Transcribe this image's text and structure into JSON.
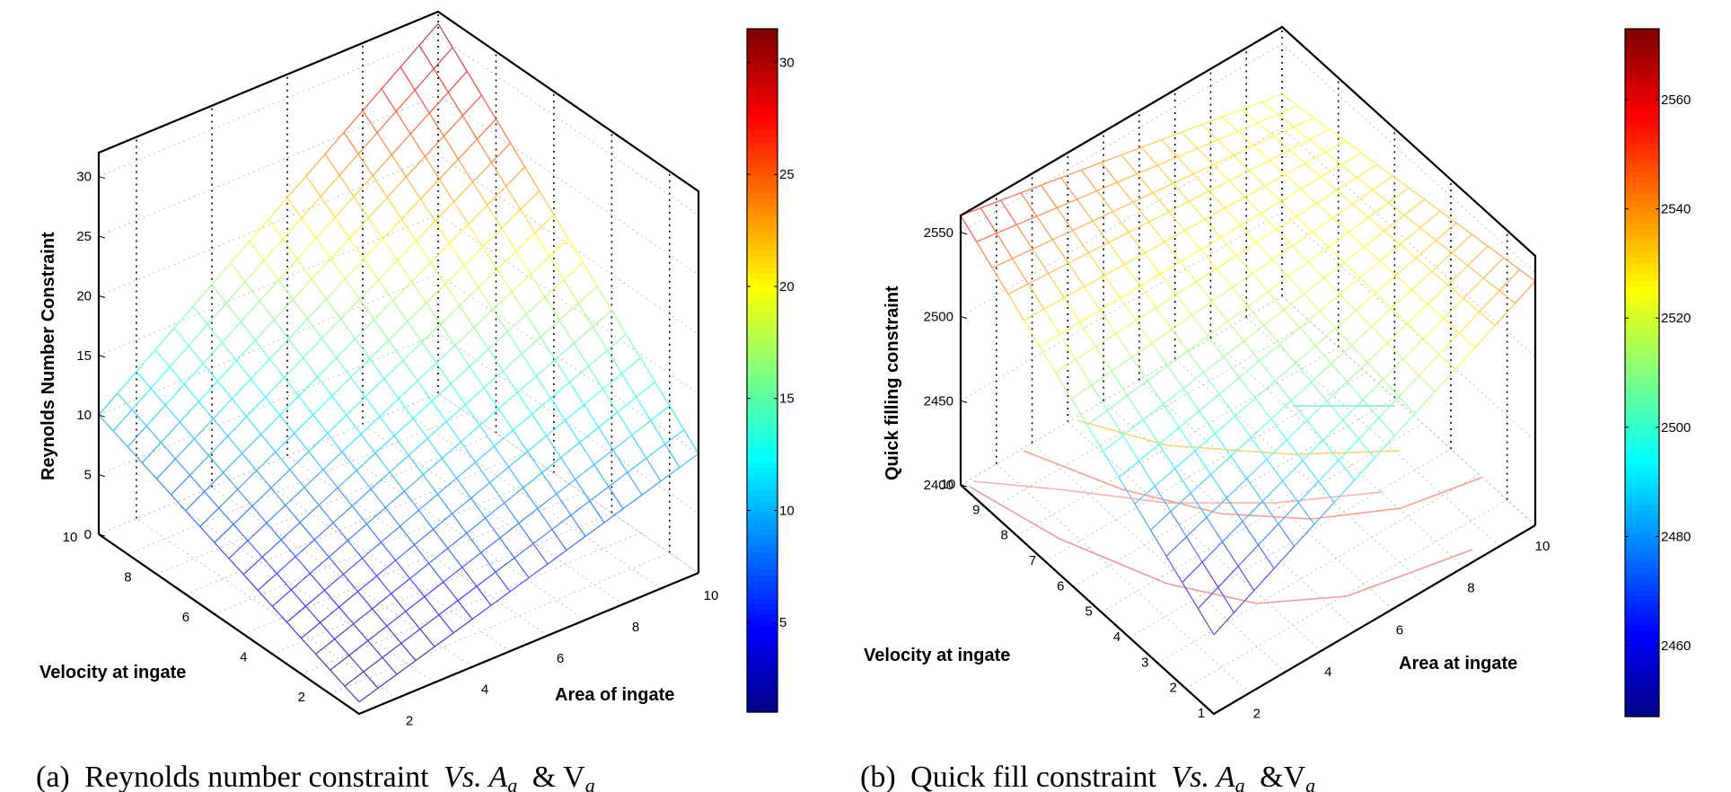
{
  "chart_data": [
    {
      "type": "surface",
      "panel": "a",
      "caption_prefix": "(a)",
      "caption_text": "Reynolds number constraint",
      "caption_math": "Vs. A",
      "caption_sub": "a",
      "caption_amp": "& V",
      "caption_sub2": "a",
      "zlabel": "Reynolds Number Constraint",
      "xlabel": "Area of ingate",
      "ylabel": "Velocity at ingate",
      "x_range": [
        1,
        10
      ],
      "y_range": [
        1,
        10
      ],
      "zlim": [
        0,
        32
      ],
      "z_ticks": [
        "0",
        "5",
        "10",
        "15",
        "20",
        "25",
        "30"
      ],
      "x_ticks": [
        "2",
        "4",
        "6",
        "8",
        "10"
      ],
      "y_ticks": [
        "2",
        "4",
        "6",
        "8",
        "10"
      ],
      "colorbar": {
        "min": 1,
        "max": 31.5,
        "ticks": [
          "5",
          "10",
          "15",
          "20",
          "25",
          "30"
        ]
      },
      "corner_values": {
        "x_low_y_low": 1,
        "x_high_y_low": 10,
        "x_low_y_high": 10,
        "x_high_y_high": 31
      },
      "grid": true
    },
    {
      "type": "surface",
      "panel": "b",
      "caption_prefix": "(b)",
      "caption_text": "Quick fill constraint",
      "caption_math": "Vs. A",
      "caption_sub": "a",
      "caption_amp": "&V",
      "caption_sub2": "a",
      "zlabel": "Quick filling constraint",
      "xlabel": "Area at ingate",
      "ylabel": "Velocity at ingate",
      "x_range": [
        1,
        10
      ],
      "y_range": [
        1,
        10
      ],
      "zlim": [
        2400,
        2560
      ],
      "z_ticks": [
        "2400",
        "2450",
        "2500",
        "2550"
      ],
      "x_ticks": [
        "2",
        "4",
        "6",
        "8",
        "10"
      ],
      "y_ticks": [
        "1",
        "2",
        "3",
        "4",
        "5",
        "6",
        "7",
        "8",
        "9",
        "10"
      ],
      "colorbar": {
        "min": 2447,
        "max": 2573,
        "ticks": [
          "2460",
          "2480",
          "2500",
          "2520",
          "2540",
          "2560"
        ]
      },
      "corner_values": {
        "x_low_y_low": 2447,
        "x_high_y_low": 2545,
        "x_low_y_high": 2560,
        "x_high_y_high": 2520
      },
      "grid": true
    }
  ]
}
